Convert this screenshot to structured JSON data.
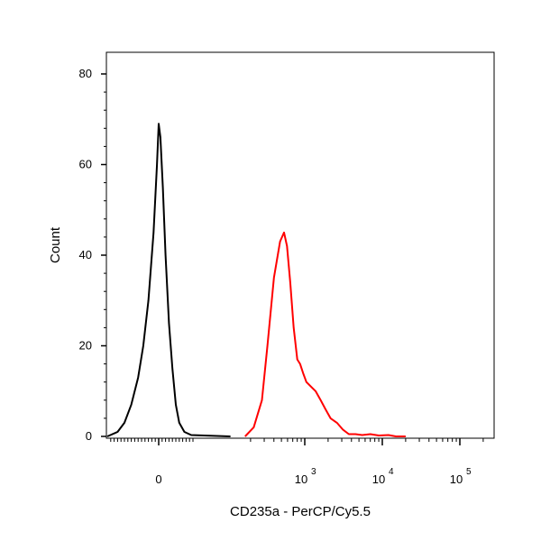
{
  "chart_data": {
    "type": "line",
    "title": "",
    "xlabel": "CD235a - PerCP/Cy5.5",
    "ylabel": "Count",
    "x_scale": "biexponential",
    "x_ticks": [
      {
        "value": 0,
        "label": "0",
        "sup": ""
      },
      {
        "value": 1000,
        "label": "10",
        "sup": "3"
      },
      {
        "value": 10000,
        "label": "10",
        "sup": "4"
      },
      {
        "value": 100000,
        "label": "10",
        "sup": "5"
      }
    ],
    "y_ticks": [
      {
        "value": 0,
        "label": "0"
      },
      {
        "value": 20,
        "label": "20"
      },
      {
        "value": 40,
        "label": "40"
      },
      {
        "value": 60,
        "label": "60"
      },
      {
        "value": 80,
        "label": "80"
      }
    ],
    "xlim": [
      -150,
      250000
    ],
    "ylim": [
      0,
      85
    ],
    "grid": false,
    "legend": "none",
    "series": [
      {
        "color": "#000000",
        "points": [
          [
            -150,
            0
          ],
          [
            -120,
            1
          ],
          [
            -100,
            3
          ],
          [
            -80,
            7
          ],
          [
            -60,
            13
          ],
          [
            -45,
            20
          ],
          [
            -30,
            30
          ],
          [
            -15,
            45
          ],
          [
            -5,
            60
          ],
          [
            0,
            69
          ],
          [
            5,
            66
          ],
          [
            12,
            55
          ],
          [
            20,
            40
          ],
          [
            30,
            25
          ],
          [
            40,
            15
          ],
          [
            50,
            7
          ],
          [
            60,
            3
          ],
          [
            75,
            1
          ],
          [
            95,
            0.3
          ],
          [
            110,
            0
          ]
        ]
      },
      {
        "color": "#ff0000",
        "points": [
          [
            170,
            0
          ],
          [
            220,
            2
          ],
          [
            280,
            8
          ],
          [
            330,
            20
          ],
          [
            400,
            35
          ],
          [
            480,
            43
          ],
          [
            540,
            45
          ],
          [
            590,
            42
          ],
          [
            650,
            34
          ],
          [
            720,
            24
          ],
          [
            800,
            17
          ],
          [
            870,
            16
          ],
          [
            950,
            14
          ],
          [
            1050,
            12
          ],
          [
            1200,
            11
          ],
          [
            1380,
            10
          ],
          [
            1600,
            8
          ],
          [
            1850,
            6
          ],
          [
            2150,
            4
          ],
          [
            2600,
            3
          ],
          [
            3100,
            1.5
          ],
          [
            3700,
            0.5
          ],
          [
            4500,
            0.5
          ],
          [
            5500,
            0.3
          ],
          [
            7000,
            0.5
          ],
          [
            9000,
            0.2
          ],
          [
            12000,
            0.3
          ],
          [
            15000,
            0
          ],
          [
            20000,
            0
          ]
        ]
      }
    ]
  }
}
